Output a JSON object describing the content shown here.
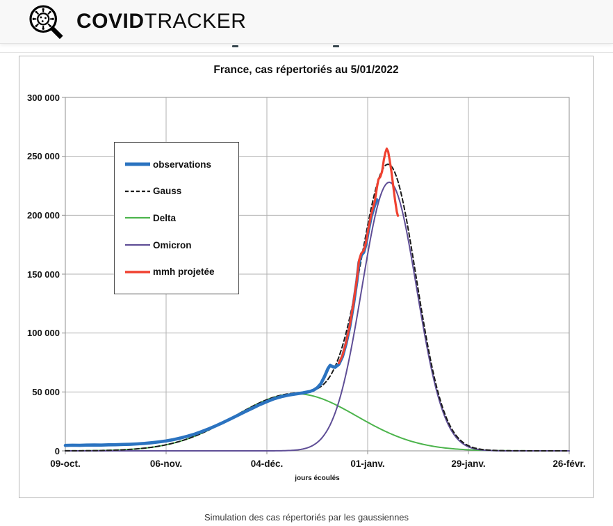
{
  "header": {
    "brand_bold": "COVID",
    "brand_light": "TRACKER",
    "logo": "virus-magnifier-logo"
  },
  "page": {
    "caption": "Simulation des cas répertoriés par les gaussiennes"
  },
  "chart_data": {
    "type": "line",
    "title": "France, cas répertoriés au 5/01/2022",
    "xlabel": "jours écoulés",
    "ylabel": "",
    "grid": true,
    "legend_position": "upper left",
    "ylim": [
      0,
      300000
    ],
    "x_range_days": [
      0,
      140
    ],
    "x_tick_days": [
      0,
      28,
      56,
      84,
      112,
      140
    ],
    "x_tick_labels": [
      "09-oct.",
      "06-nov.",
      "04-déc.",
      "01-janv.",
      "29-janv.",
      "26-févr."
    ],
    "y_tick_values": [
      0,
      50000,
      100000,
      150000,
      200000,
      250000,
      300000
    ],
    "y_tick_labels": [
      "0",
      "50 000",
      "100 000",
      "150 000",
      "200 000",
      "250 000",
      "300 000"
    ],
    "colors": {
      "grid": "#b1b1b1",
      "frame": "#8f8f8f",
      "observations": "#2b73c0",
      "gauss": "#1b1b1b",
      "delta": "#4cb44c",
      "omicron": "#5f4e96",
      "mmh": "#f04130"
    },
    "series": [
      {
        "name": "observations",
        "color": "#2b73c0",
        "style": "solid",
        "width": 4.6,
        "sample_width": 5,
        "points_day_thousands": [
          [
            0,
            4.6
          ],
          [
            2,
            4.8
          ],
          [
            4,
            4.7
          ],
          [
            6,
            4.9
          ],
          [
            8,
            5.0
          ],
          [
            10,
            4.9
          ],
          [
            12,
            5.1
          ],
          [
            14,
            5.2
          ],
          [
            16,
            5.4
          ],
          [
            18,
            5.6
          ],
          [
            20,
            5.9
          ],
          [
            22,
            6.3
          ],
          [
            24,
            6.9
          ],
          [
            26,
            7.6
          ],
          [
            28,
            8.4
          ],
          [
            30,
            9.5
          ],
          [
            32,
            10.9
          ],
          [
            34,
            12.5
          ],
          [
            36,
            14.3
          ],
          [
            38,
            16.5
          ],
          [
            40,
            18.9
          ],
          [
            42,
            21.5
          ],
          [
            44,
            24.3
          ],
          [
            46,
            27.3
          ],
          [
            48,
            30.3
          ],
          [
            50,
            33.3
          ],
          [
            52,
            36.2
          ],
          [
            54,
            39.2
          ],
          [
            56,
            41.8
          ],
          [
            58,
            44.2
          ],
          [
            60,
            46.0
          ],
          [
            62,
            47.3
          ],
          [
            64,
            48.3
          ],
          [
            66,
            49.2
          ],
          [
            68,
            50.4
          ],
          [
            69,
            51.6
          ],
          [
            70,
            53.6
          ],
          [
            71,
            57.0
          ],
          [
            72,
            63.0
          ],
          [
            73,
            70.0
          ],
          [
            73.6,
            72.6
          ],
          [
            74.3,
            71.4
          ],
          [
            75,
            71.0
          ],
          [
            76,
            73.5
          ],
          [
            77,
            80.0
          ],
          [
            78,
            91.0
          ],
          [
            79,
            105.0
          ],
          [
            80,
            123.0
          ],
          [
            81,
            144.0
          ],
          [
            81.6,
            160.0
          ],
          [
            82.2,
            166.0
          ],
          [
            82.9,
            168.5
          ],
          [
            83.5,
            175.0
          ],
          [
            84.2,
            187.0
          ],
          [
            85,
            199.0
          ],
          [
            86,
            209.0
          ],
          [
            86.6,
            213.0
          ]
        ]
      },
      {
        "name": "Gauss",
        "color": "#1b1b1b",
        "style": "dashed",
        "width": 2,
        "sample_width": 2.2,
        "model": "sum of Delta and Omicron gaussians"
      },
      {
        "name": "Delta",
        "color": "#4cb44c",
        "style": "solid",
        "width": 2,
        "sample_width": 2.2,
        "gaussian": {
          "peak": 48500,
          "center_day": 64,
          "sigma_days": 17
        }
      },
      {
        "name": "Omicron",
        "color": "#5f4e96",
        "style": "solid",
        "width": 2,
        "sample_width": 2.2,
        "gaussian": {
          "peak": 228000,
          "center_day": 90,
          "sigma_days": 7.6
        }
      },
      {
        "name": "mmh projetée",
        "color": "#f04130",
        "style": "solid",
        "width": 3.2,
        "sample_width": 3.5,
        "points_day_thousands": [
          [
            76,
            74.5
          ],
          [
            77,
            81.0
          ],
          [
            78,
            92.0
          ],
          [
            79,
            106.0
          ],
          [
            80,
            124.5
          ],
          [
            81,
            145.5
          ],
          [
            81.6,
            161.5
          ],
          [
            82.2,
            167.5
          ],
          [
            82.9,
            170.0
          ],
          [
            83.5,
            176.5
          ],
          [
            84.2,
            188.5
          ],
          [
            85,
            201.0
          ],
          [
            86,
            212.0
          ],
          [
            86.6,
            224.0
          ],
          [
            87,
            230.5
          ],
          [
            87.5,
            232.5
          ],
          [
            88,
            237.0
          ],
          [
            88.5,
            247.0
          ],
          [
            88.9,
            253.0
          ],
          [
            89.3,
            256.5
          ],
          [
            89.7,
            254.0
          ],
          [
            90.1,
            247.0
          ],
          [
            90.6,
            237.0
          ],
          [
            91.1,
            225.0
          ],
          [
            91.6,
            213.0
          ],
          [
            92.1,
            203.0
          ],
          [
            92.4,
            199.5
          ]
        ]
      }
    ]
  }
}
